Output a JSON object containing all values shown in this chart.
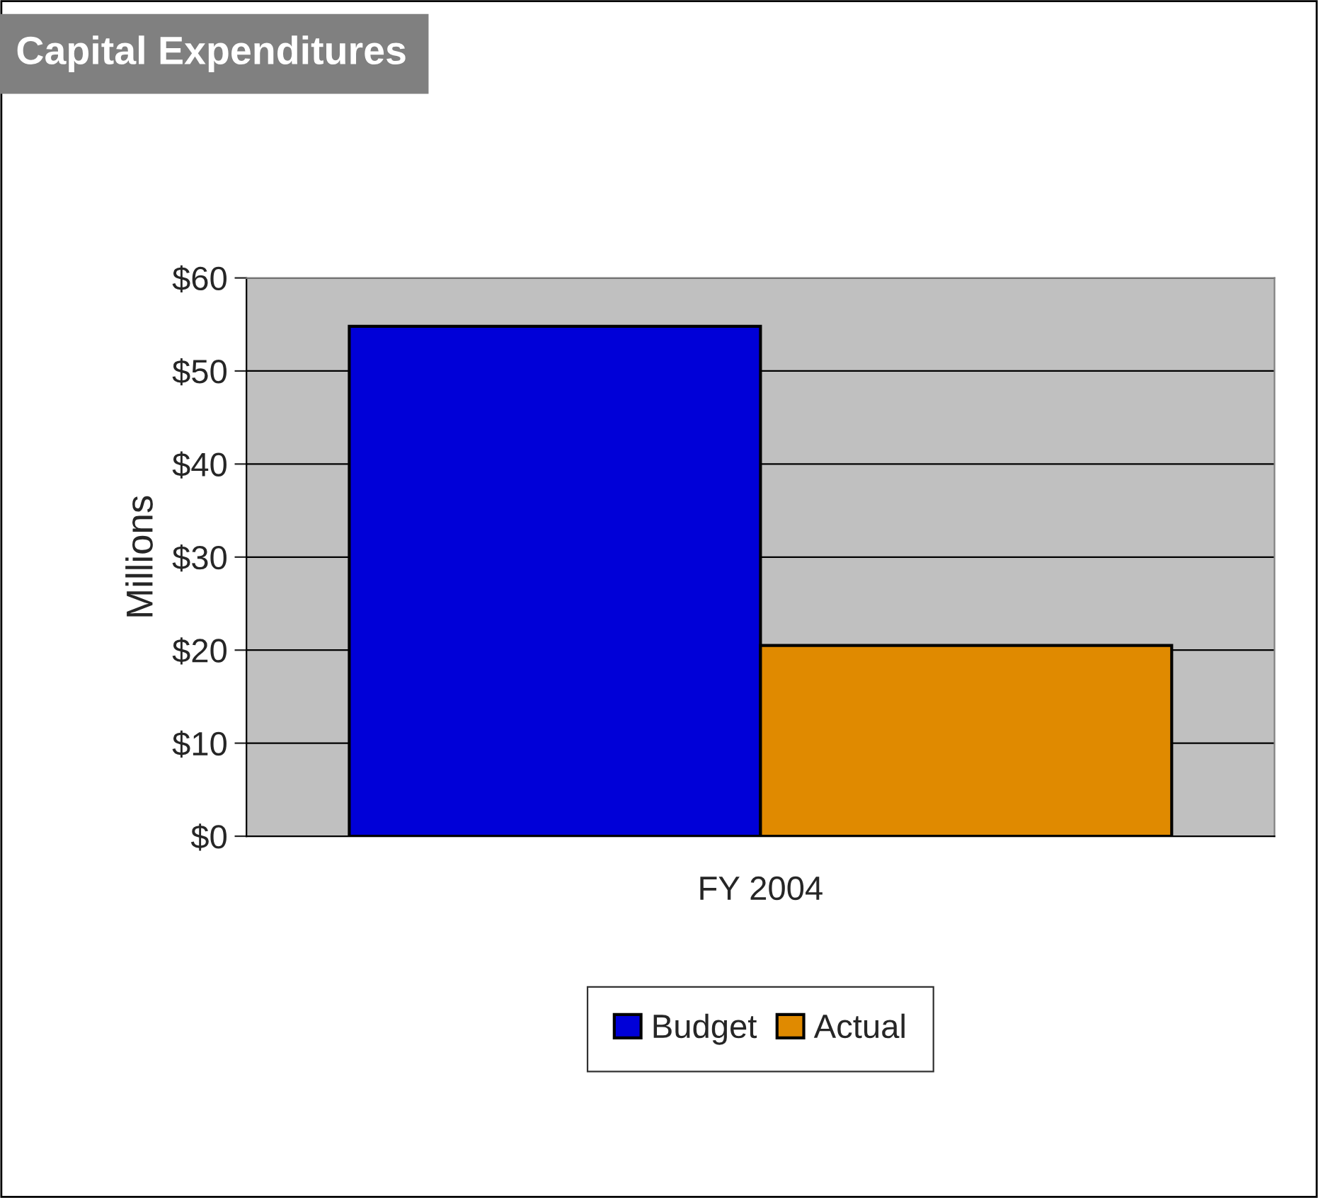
{
  "chart_data": {
    "type": "bar",
    "title": "Capital Expenditures",
    "ylabel": "Millions",
    "categories": [
      "FY 2004"
    ],
    "series": [
      {
        "name": "Budget",
        "color": "#0000d8",
        "values": [
          54.8
        ]
      },
      {
        "name": "Actual",
        "color": "#e08a00",
        "values": [
          20.5
        ]
      }
    ],
    "ylim": [
      0,
      60
    ],
    "yticks": [
      {
        "value": 0,
        "label": "$0"
      },
      {
        "value": 10,
        "label": "$10"
      },
      {
        "value": 20,
        "label": "$20"
      },
      {
        "value": 30,
        "label": "$30"
      },
      {
        "value": 40,
        "label": "$40"
      },
      {
        "value": 50,
        "label": "$50"
      },
      {
        "value": 60,
        "label": "$60"
      }
    ],
    "grid": "y",
    "legend": "bottom"
  }
}
